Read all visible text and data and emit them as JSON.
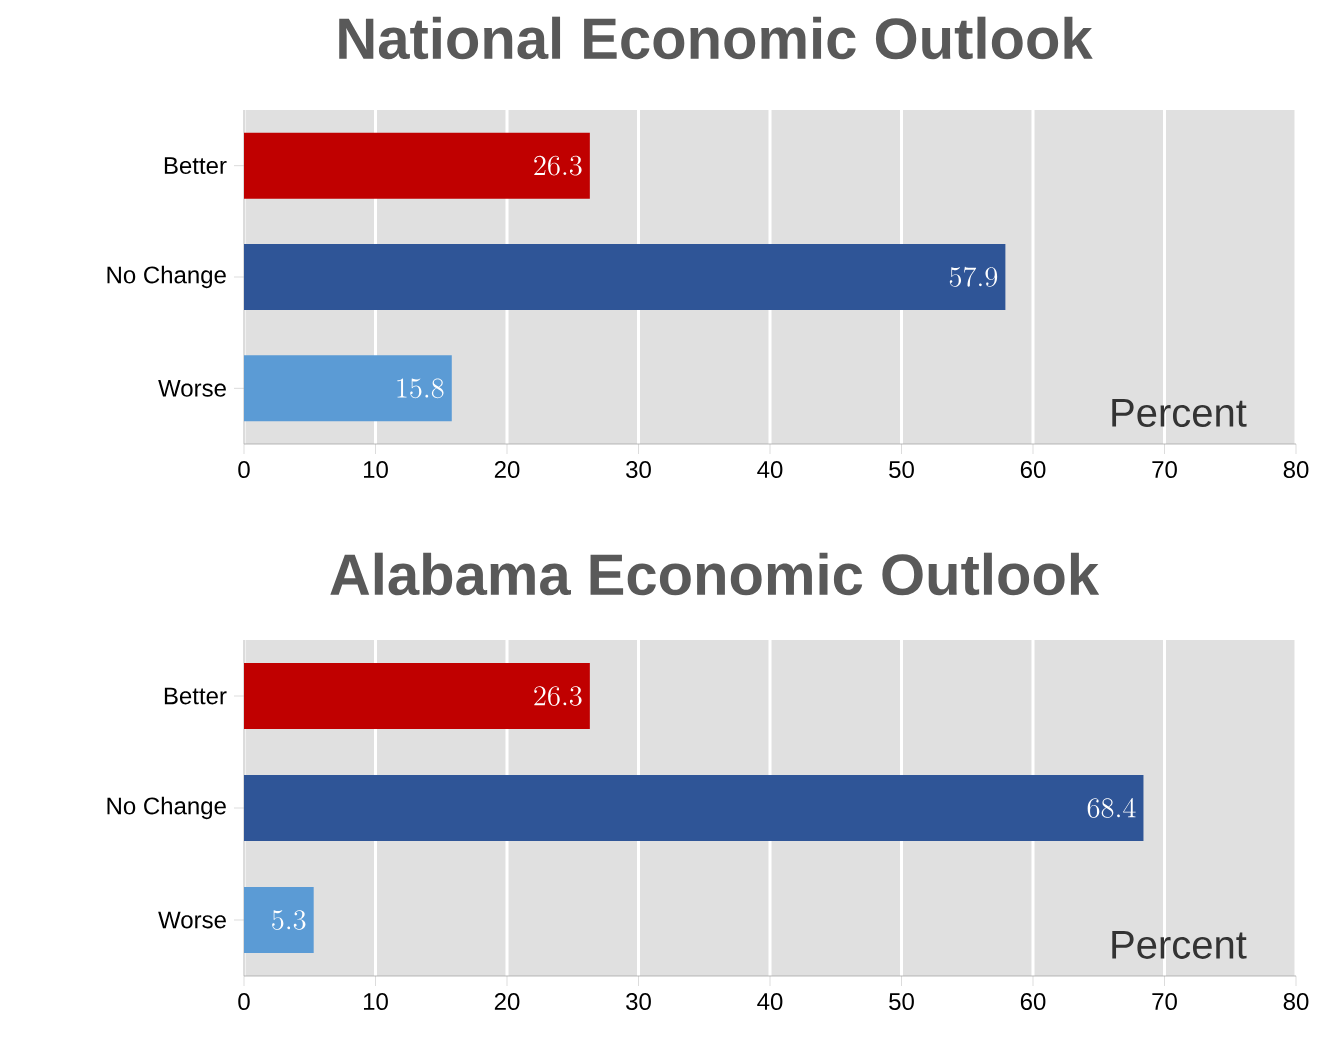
{
  "chart_data": [
    {
      "type": "bar",
      "orientation": "horizontal",
      "title": "National Economic Outlook",
      "categories": [
        "Better",
        "No Change",
        "Worse"
      ],
      "values": [
        26.3,
        57.9,
        15.8
      ],
      "colors": [
        "#c00000",
        "#2f5597",
        "#5b9bd5"
      ],
      "xlim": [
        0,
        80
      ],
      "xticks": [
        0,
        10,
        20,
        30,
        40,
        50,
        60,
        70,
        80
      ],
      "grid": "x",
      "data_labels": true,
      "annotations": [
        "Percent"
      ]
    },
    {
      "type": "bar",
      "orientation": "horizontal",
      "title": "Alabama Economic Outlook",
      "categories": [
        "Better",
        "No Change",
        "Worse"
      ],
      "values": [
        26.3,
        68.4,
        5.3
      ],
      "colors": [
        "#c00000",
        "#2f5597",
        "#5b9bd5"
      ],
      "xlim": [
        0,
        80
      ],
      "xticks": [
        0,
        10,
        20,
        30,
        40,
        50,
        60,
        70,
        80
      ],
      "grid": "x",
      "data_labels": true,
      "annotations": [
        "Percent"
      ]
    }
  ]
}
